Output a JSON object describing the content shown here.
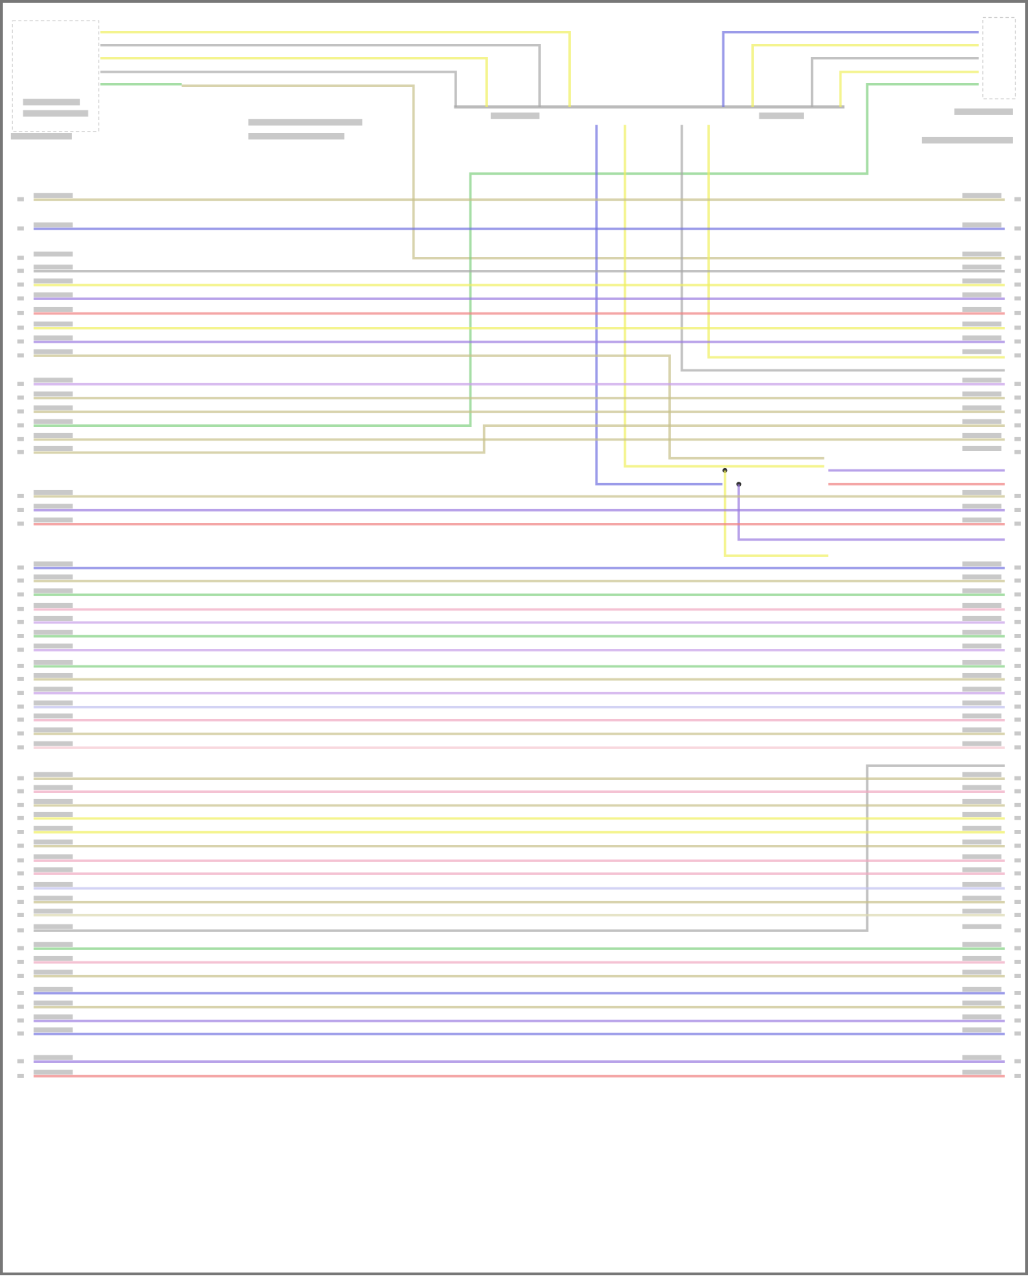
{
  "diagram": {
    "colors": {
      "tan": "#c8c08a",
      "blue": "#7070e0",
      "gray": "#a8a8a8",
      "yellow": "#f0f060",
      "purple": "#9a7ae0",
      "red": "#f08080",
      "pink": "#f0a8c0",
      "violet": "#c8a0e8",
      "green": "#80d080",
      "lavender": "#c0c0f0",
      "lightpink": "#f5c8d0",
      "lighttan": "#dcd8b0"
    },
    "horizontal_wires": [
      "tan",
      "blue",
      "tan",
      "gray",
      "yellow",
      "purple",
      "red",
      "yellow",
      "purple",
      "tan",
      "violet",
      "tan",
      "tan",
      "green",
      "tan",
      "tan",
      "tan",
      "purple",
      "red",
      "blue",
      "tan",
      "green",
      "pink",
      "violet",
      "green",
      "violet",
      "green",
      "tan",
      "violet",
      "lavender",
      "pink",
      "tan",
      "lightpink",
      "tan",
      "pink",
      "tan",
      "yellow",
      "yellow",
      "tan",
      "pink",
      "pink",
      "lavender",
      "tan",
      "lighttan",
      "gray",
      "green",
      "pink",
      "tan",
      "blue",
      "tan",
      "purple",
      "blue",
      "purple",
      "red"
    ]
  }
}
